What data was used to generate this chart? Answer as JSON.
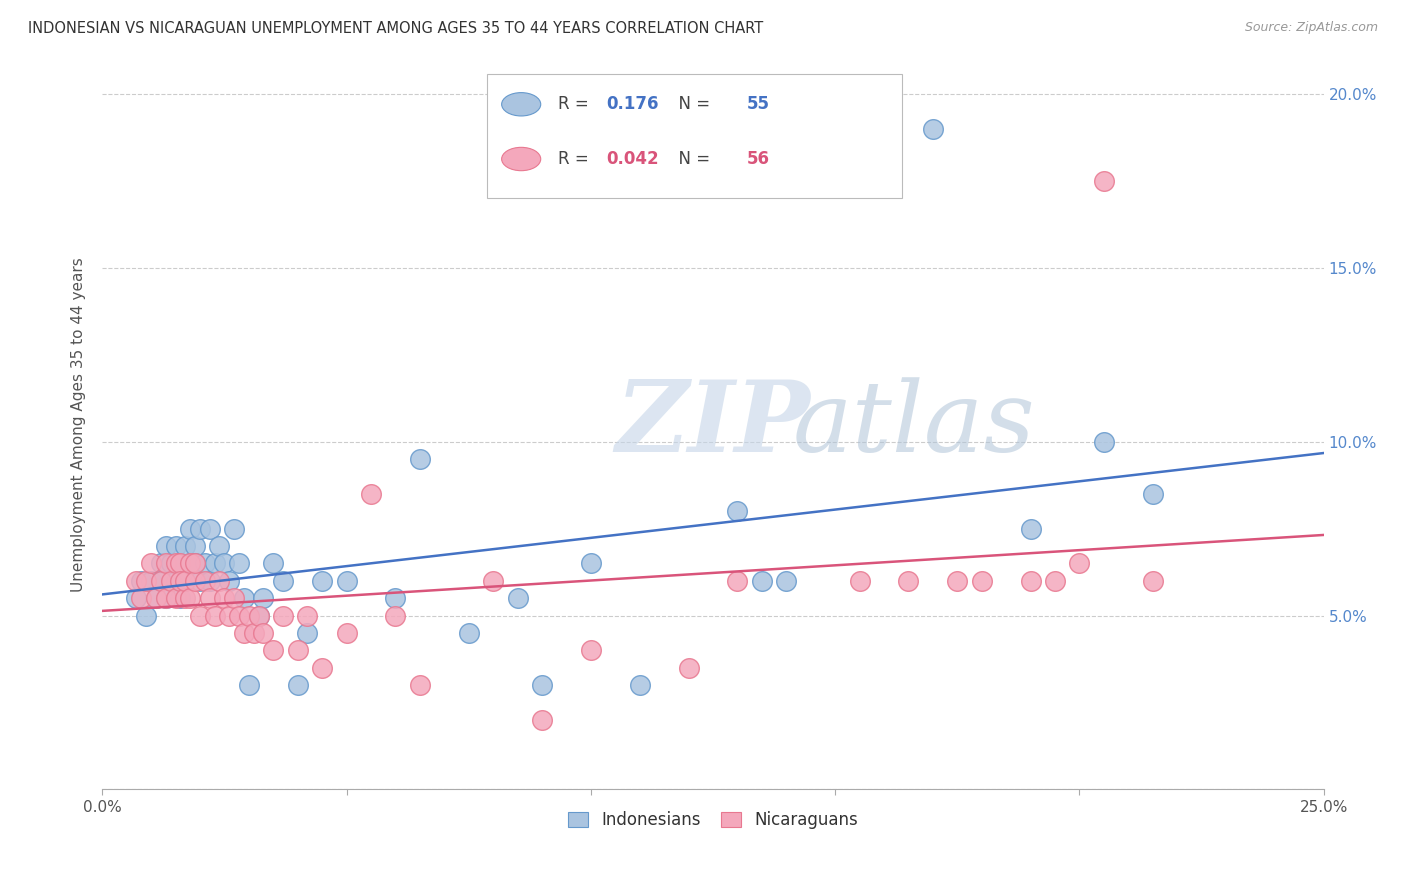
{
  "title": "INDONESIAN VS NICARAGUAN UNEMPLOYMENT AMONG AGES 35 TO 44 YEARS CORRELATION CHART",
  "source": "Source: ZipAtlas.com",
  "ylabel": "Unemployment Among Ages 35 to 44 years",
  "xlim": [
    0.0,
    0.25
  ],
  "ylim": [
    0.0,
    0.21
  ],
  "yticks": [
    0.0,
    0.05,
    0.1,
    0.15,
    0.2
  ],
  "ytick_labels_right": [
    "",
    "5.0%",
    "10.0%",
    "15.0%",
    "20.0%"
  ],
  "xticks": [
    0.0,
    0.05,
    0.1,
    0.15,
    0.2,
    0.25
  ],
  "xtick_labels": [
    "0.0%",
    "",
    "",
    "",
    "",
    "25.0%"
  ],
  "indonesian_color": "#aac4e0",
  "nicaraguan_color": "#f4a8bc",
  "indonesian_edge_color": "#6699cc",
  "nicaraguan_edge_color": "#e87890",
  "indonesian_line_color": "#4472c4",
  "nicaraguan_line_color": "#d9547a",
  "R_indo": "0.176",
  "N_indo": "55",
  "R_nica": "0.042",
  "N_nica": "56",
  "watermark_zip": "ZIP",
  "watermark_atlas": "atlas",
  "indonesian_x": [
    0.007,
    0.008,
    0.009,
    0.01,
    0.011,
    0.012,
    0.012,
    0.013,
    0.013,
    0.014,
    0.015,
    0.015,
    0.016,
    0.016,
    0.017,
    0.017,
    0.018,
    0.018,
    0.019,
    0.019,
    0.02,
    0.02,
    0.021,
    0.022,
    0.022,
    0.023,
    0.024,
    0.025,
    0.026,
    0.027,
    0.028,
    0.029,
    0.03,
    0.032,
    0.033,
    0.035,
    0.037,
    0.04,
    0.042,
    0.045,
    0.05,
    0.06,
    0.065,
    0.075,
    0.085,
    0.09,
    0.1,
    0.11,
    0.13,
    0.135,
    0.14,
    0.17,
    0.19,
    0.205,
    0.215
  ],
  "indonesian_y": [
    0.055,
    0.06,
    0.05,
    0.06,
    0.055,
    0.065,
    0.06,
    0.055,
    0.07,
    0.065,
    0.06,
    0.07,
    0.055,
    0.065,
    0.07,
    0.06,
    0.065,
    0.075,
    0.07,
    0.065,
    0.075,
    0.06,
    0.065,
    0.06,
    0.075,
    0.065,
    0.07,
    0.065,
    0.06,
    0.075,
    0.065,
    0.055,
    0.03,
    0.05,
    0.055,
    0.065,
    0.06,
    0.03,
    0.045,
    0.06,
    0.06,
    0.055,
    0.095,
    0.045,
    0.055,
    0.03,
    0.065,
    0.03,
    0.08,
    0.06,
    0.06,
    0.19,
    0.075,
    0.1,
    0.085
  ],
  "nicaraguan_x": [
    0.007,
    0.008,
    0.009,
    0.01,
    0.011,
    0.012,
    0.013,
    0.013,
    0.014,
    0.015,
    0.015,
    0.016,
    0.016,
    0.017,
    0.017,
    0.018,
    0.018,
    0.019,
    0.019,
    0.02,
    0.021,
    0.022,
    0.023,
    0.024,
    0.025,
    0.026,
    0.027,
    0.028,
    0.029,
    0.03,
    0.031,
    0.032,
    0.033,
    0.035,
    0.037,
    0.04,
    0.042,
    0.045,
    0.05,
    0.055,
    0.06,
    0.065,
    0.08,
    0.09,
    0.1,
    0.12,
    0.13,
    0.155,
    0.165,
    0.175,
    0.18,
    0.19,
    0.195,
    0.2,
    0.205,
    0.215
  ],
  "nicaraguan_y": [
    0.06,
    0.055,
    0.06,
    0.065,
    0.055,
    0.06,
    0.065,
    0.055,
    0.06,
    0.065,
    0.055,
    0.065,
    0.06,
    0.055,
    0.06,
    0.065,
    0.055,
    0.06,
    0.065,
    0.05,
    0.06,
    0.055,
    0.05,
    0.06,
    0.055,
    0.05,
    0.055,
    0.05,
    0.045,
    0.05,
    0.045,
    0.05,
    0.045,
    0.04,
    0.05,
    0.04,
    0.05,
    0.035,
    0.045,
    0.085,
    0.05,
    0.03,
    0.06,
    0.02,
    0.04,
    0.035,
    0.06,
    0.06,
    0.06,
    0.06,
    0.06,
    0.06,
    0.06,
    0.065,
    0.175,
    0.06
  ]
}
